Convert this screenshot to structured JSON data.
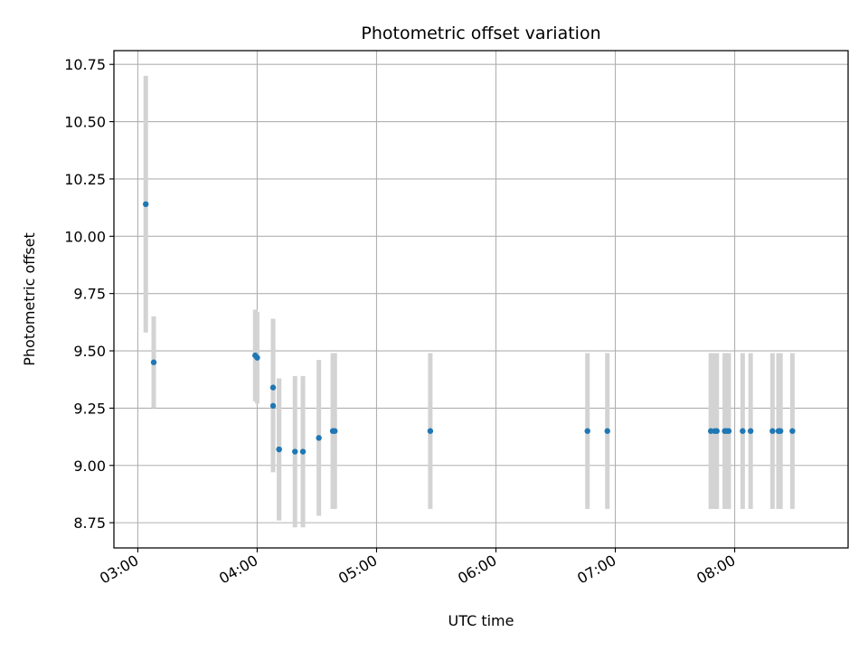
{
  "chart_data": {
    "type": "scatter",
    "title": "Photometric offset variation",
    "xlabel": "UTC time",
    "ylabel": "Photometric offset",
    "x_ticks": [
      "03:00",
      "04:00",
      "05:00",
      "06:00",
      "07:00",
      "08:00"
    ],
    "y_ticks": [
      "8.75",
      "9.00",
      "9.25",
      "9.50",
      "9.75",
      "10.00",
      "10.25",
      "10.50",
      "10.75"
    ],
    "xlim": [
      "02:48",
      "08:57"
    ],
    "ylim": [
      8.64,
      10.81
    ],
    "grid": true,
    "colors": {
      "point": "#1f77b4",
      "errorbar": "#d3d3d3",
      "grid": "#b0b0b0"
    },
    "series": [
      {
        "points": [
          {
            "x": "03:04",
            "y": 10.14,
            "err": 0.56
          },
          {
            "x": "03:08",
            "y": 9.45,
            "err": 0.2
          },
          {
            "x": "03:59",
            "y": 9.48,
            "err": 0.2
          },
          {
            "x": "04:00",
            "y": 9.47,
            "err": 0.2
          },
          {
            "x": "04:08",
            "y": 9.34,
            "err": 0.3
          },
          {
            "x": "04:08",
            "y": 9.26,
            "err": 0.29
          },
          {
            "x": "04:11",
            "y": 9.07,
            "err": 0.31
          },
          {
            "x": "04:11",
            "y": 9.07,
            "err": 0.31
          },
          {
            "x": "04:19",
            "y": 9.06,
            "err": 0.33
          },
          {
            "x": "04:23",
            "y": 9.06,
            "err": 0.33
          },
          {
            "x": "04:31",
            "y": 9.12,
            "err": 0.34
          },
          {
            "x": "04:38",
            "y": 9.15,
            "err": 0.34
          },
          {
            "x": "04:39",
            "y": 9.15,
            "err": 0.34
          },
          {
            "x": "05:27",
            "y": 9.15,
            "err": 0.34
          },
          {
            "x": "06:46",
            "y": 9.15,
            "err": 0.34
          },
          {
            "x": "06:56",
            "y": 9.15,
            "err": 0.34
          },
          {
            "x": "07:48",
            "y": 9.15,
            "err": 0.34
          },
          {
            "x": "07:50",
            "y": 9.15,
            "err": 0.34
          },
          {
            "x": "07:51",
            "y": 9.15,
            "err": 0.34
          },
          {
            "x": "07:55",
            "y": 9.15,
            "err": 0.34
          },
          {
            "x": "07:56",
            "y": 9.15,
            "err": 0.34
          },
          {
            "x": "07:57",
            "y": 9.15,
            "err": 0.34
          },
          {
            "x": "08:04",
            "y": 9.15,
            "err": 0.34
          },
          {
            "x": "08:08",
            "y": 9.15,
            "err": 0.34
          },
          {
            "x": "08:19",
            "y": 9.15,
            "err": 0.34
          },
          {
            "x": "08:22",
            "y": 9.15,
            "err": 0.34
          },
          {
            "x": "08:23",
            "y": 9.15,
            "err": 0.34
          },
          {
            "x": "08:29",
            "y": 9.15,
            "err": 0.34
          }
        ]
      }
    ]
  }
}
